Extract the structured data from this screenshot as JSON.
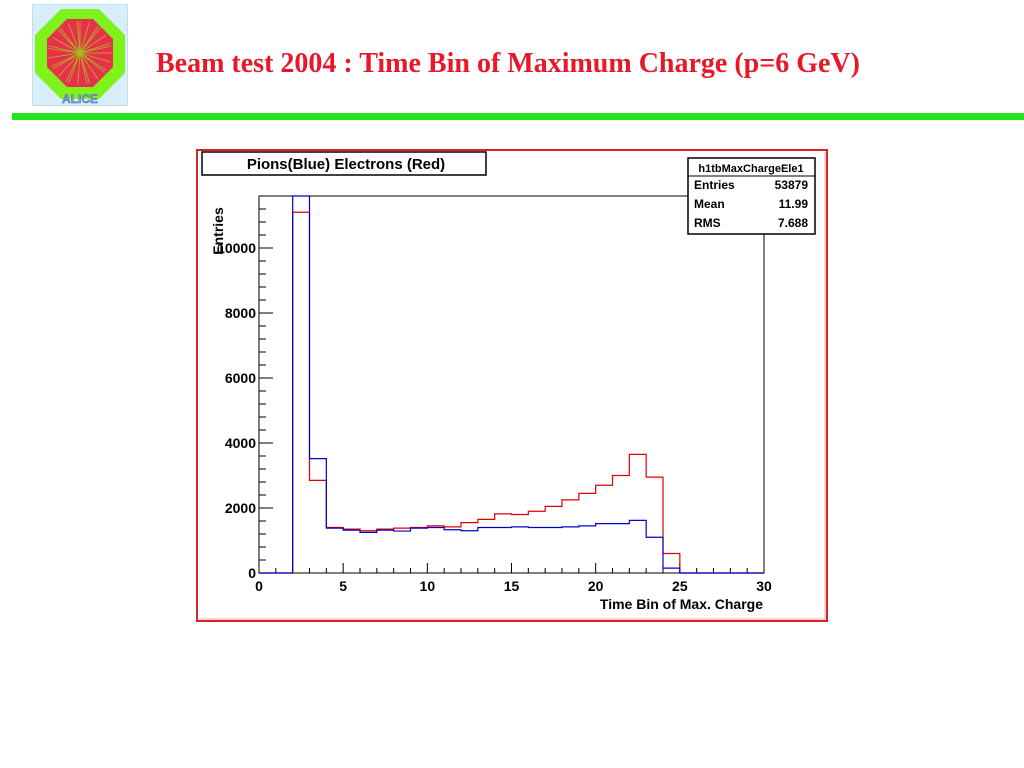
{
  "slide": {
    "title": "Beam test 2004 : Time Bin of Maximum Charge (p=6 GeV)",
    "logo_text": "ALICE",
    "colors": {
      "title": "#e8172a",
      "rule": "#22e51e",
      "frame": "#d8222a"
    }
  },
  "chart_data": {
    "type": "step-histogram",
    "title": "Pions(Blue) Electrons (Red)",
    "xlabel": "Time Bin of Max. Charge",
    "ylabel": "Entries",
    "xlim": [
      0,
      30
    ],
    "ylim": [
      0,
      11600
    ],
    "x_ticks": [
      0,
      5,
      10,
      15,
      20,
      25,
      30
    ],
    "y_ticks": [
      0,
      2000,
      4000,
      6000,
      8000,
      10000
    ],
    "bin_width": 1,
    "bin_edges_start": 0,
    "stats_box": {
      "name": "h1tbMaxChargeEle1",
      "rows": [
        {
          "label": "Entries",
          "value": "53879"
        },
        {
          "label": "Mean",
          "value": "11.99"
        },
        {
          "label": "RMS",
          "value": "7.688"
        }
      ]
    },
    "series": [
      {
        "name": "Electrons",
        "color": "#e00000",
        "values": [
          0,
          0,
          11100,
          2850,
          1400,
          1350,
          1300,
          1350,
          1380,
          1400,
          1450,
          1420,
          1550,
          1650,
          1820,
          1800,
          1900,
          2050,
          2250,
          2450,
          2700,
          3000,
          3650,
          2950,
          600,
          0,
          0,
          0,
          0,
          0
        ]
      },
      {
        "name": "Pions",
        "color": "#0000cc",
        "values": [
          0,
          0,
          11600,
          3520,
          1380,
          1320,
          1250,
          1320,
          1290,
          1380,
          1400,
          1330,
          1300,
          1400,
          1400,
          1420,
          1400,
          1400,
          1420,
          1450,
          1520,
          1520,
          1620,
          1100,
          150,
          0,
          0,
          0,
          0,
          0
        ]
      }
    ]
  }
}
